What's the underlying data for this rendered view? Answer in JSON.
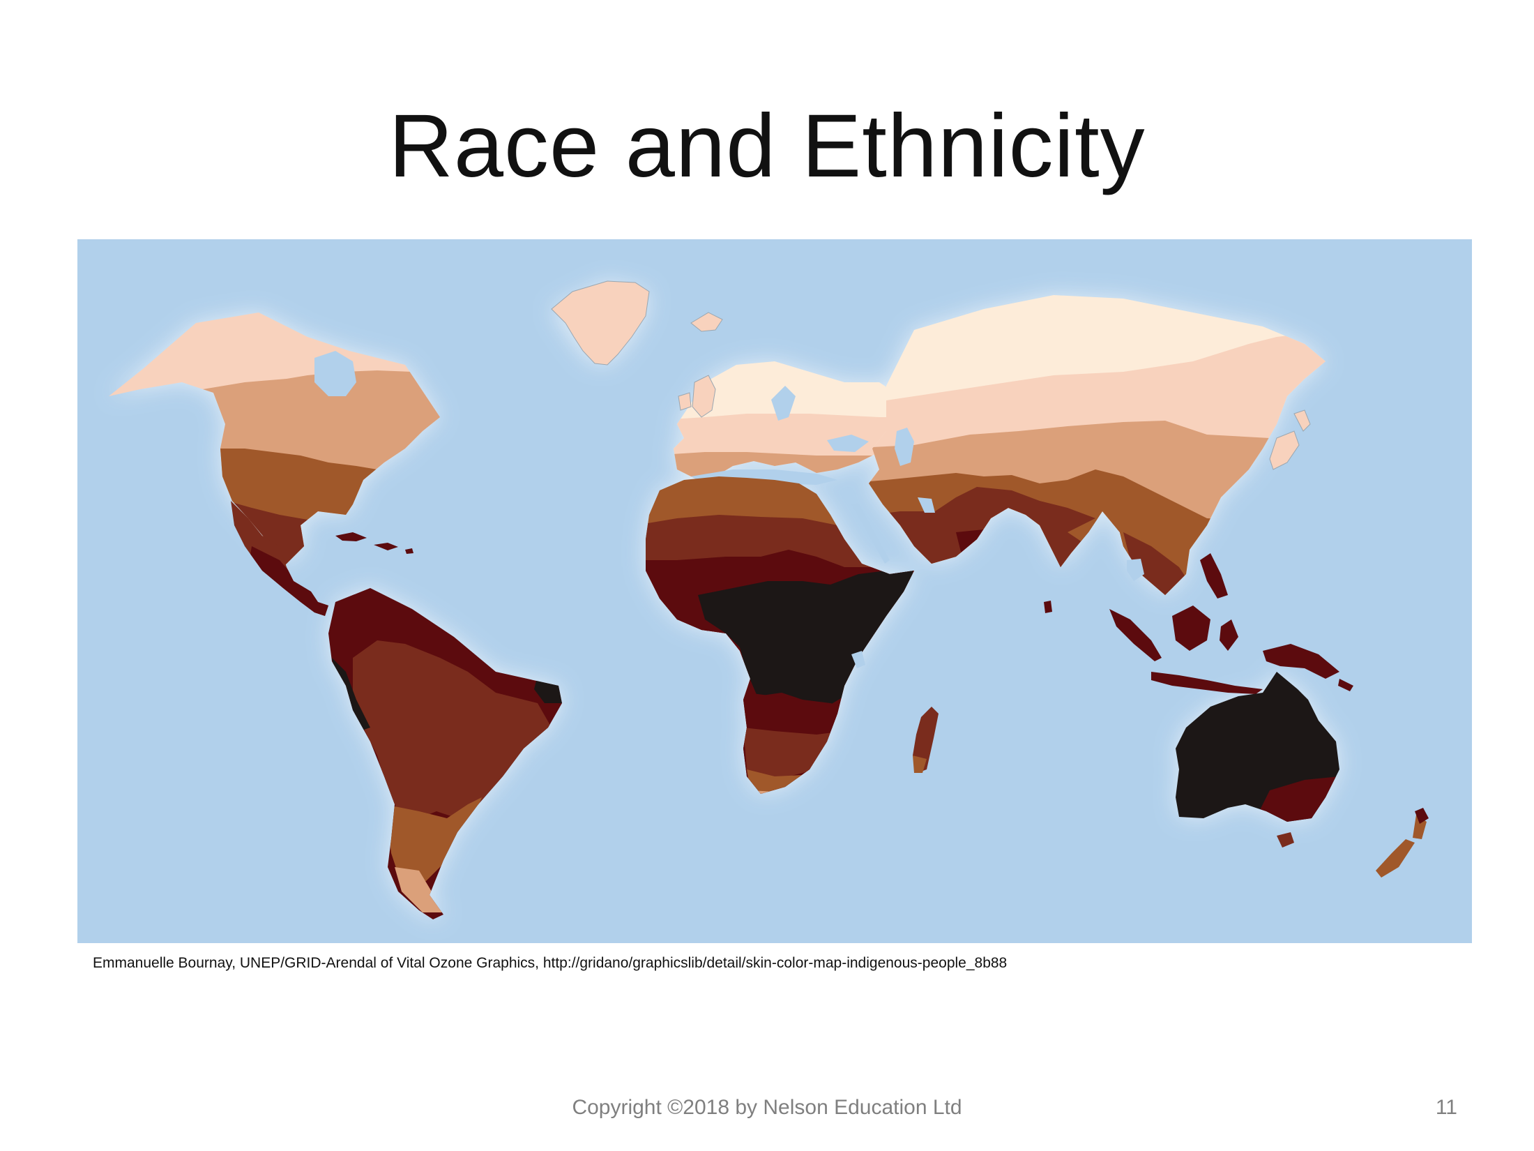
{
  "slide": {
    "title": "Race and Ethnicity",
    "credit": "Emmanuelle Bournay, UNEP/GRID-Arendal of Vital Ozone Graphics, http://gridano/graphicslib/detail/skin-color-map-indigenous-people_8b88",
    "footer": "Copyright ©2018 by Nelson Education Ltd",
    "page_number": "11"
  },
  "map": {
    "ocean_color": "#b1d0eb",
    "skin_tone_palette": [
      "#fdecd9",
      "#f8d2bd",
      "#dba07a",
      "#a0582a",
      "#7a2c1d",
      "#5c0b0e",
      "#1c1716"
    ],
    "regions": [
      "north-america",
      "central-america",
      "south-america",
      "greenland",
      "europe",
      "north-asia",
      "middle-east",
      "africa",
      "madagascar",
      "south-asia",
      "east-asia",
      "southeast-asia",
      "japan",
      "australia",
      "new-zealand"
    ]
  }
}
